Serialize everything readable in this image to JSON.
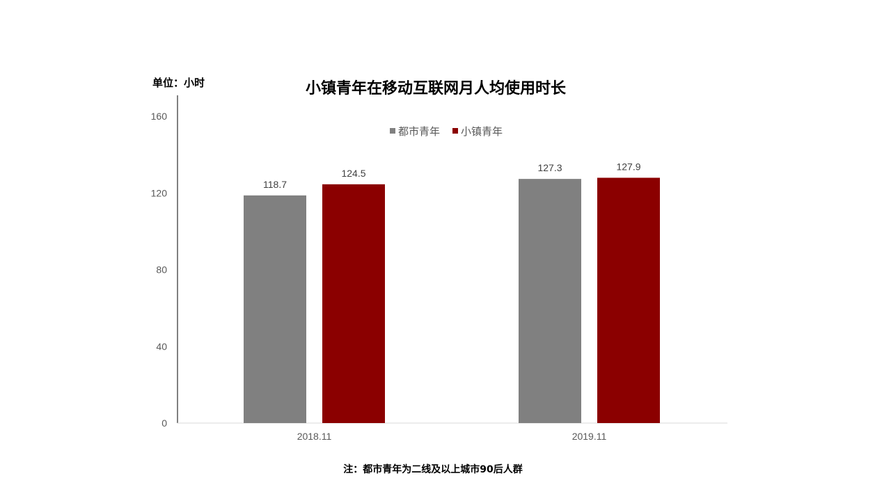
{
  "chart_data": {
    "type": "bar",
    "title": "小镇青年在移动互联网月人均使用时长",
    "unit_label": "单位：小时",
    "categories": [
      "2018.11",
      "2019.11"
    ],
    "series": [
      {
        "name": "都市青年",
        "color": "#808080",
        "values": [
          118.7,
          127.3
        ],
        "labels": [
          "118.7",
          "127.3"
        ]
      },
      {
        "name": "小镇青年",
        "color": "#8B0000",
        "values": [
          124.5,
          127.9
        ],
        "labels": [
          "124.5",
          "127.9"
        ]
      }
    ],
    "ylim": [
      0,
      160
    ],
    "yticks": [
      "0",
      "40",
      "80",
      "120",
      "160"
    ],
    "ytick_values": [
      0,
      40,
      80,
      120,
      160
    ],
    "legend_position": "top-center",
    "grid": false,
    "footnote": "注：都市青年为二线及以上城市90后人群"
  }
}
